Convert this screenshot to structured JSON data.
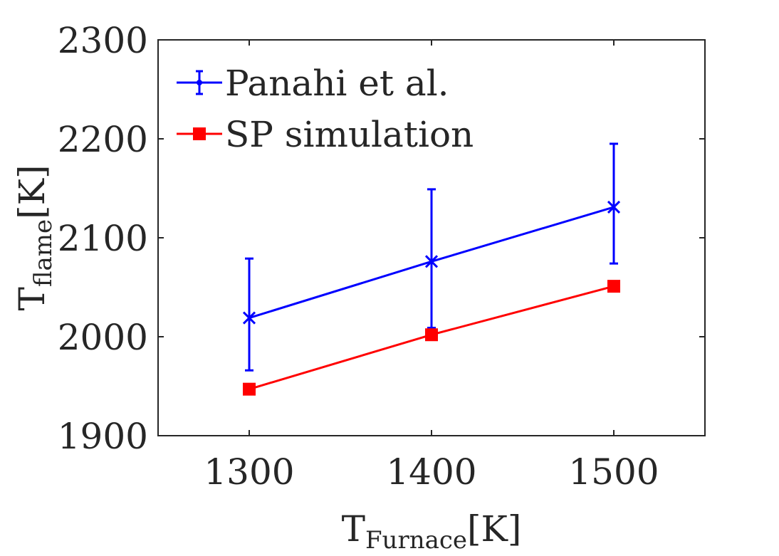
{
  "chart_data": {
    "type": "line",
    "x": [
      1300,
      1400,
      1500
    ],
    "xlim": [
      1250,
      1550
    ],
    "ylim": [
      1900,
      2300
    ],
    "xticks": [
      1300,
      1400,
      1500
    ],
    "yticks": [
      1900,
      2000,
      2100,
      2200,
      2300
    ],
    "xtick_labels": [
      "1300",
      "1400",
      "1500"
    ],
    "ytick_labels": [
      "1900",
      "2000",
      "2100",
      "2200",
      "2300"
    ],
    "xlabel": {
      "main": "T",
      "sub": "Furnace",
      "unit": "[K]"
    },
    "ylabel": {
      "main": "T",
      "sub": "flame",
      "unit": "[K]"
    },
    "grid": false,
    "legend_position": "top-left",
    "series": [
      {
        "name": "Panahi et al.",
        "color": "#0000ff",
        "marker": "x",
        "values": [
          2019,
          2076,
          2131
        ],
        "error_low": [
          1966,
          2009,
          2074
        ],
        "error_high": [
          2079,
          2149,
          2195
        ]
      },
      {
        "name": "SP simulation",
        "color": "#ff0000",
        "marker": "square",
        "values": [
          1947,
          2002,
          2051
        ]
      }
    ]
  }
}
